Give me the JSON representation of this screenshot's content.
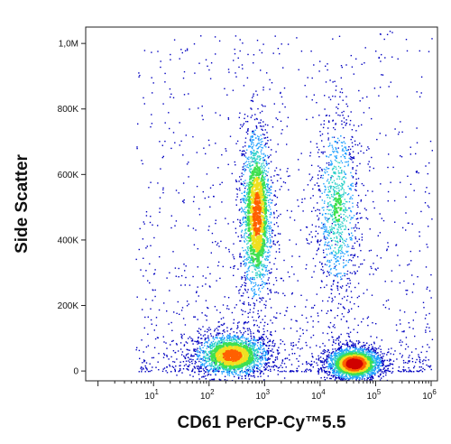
{
  "chart_data": {
    "type": "scatter",
    "subtype": "density-dot-plot",
    "title": "",
    "xlabel": "CD61 PerCP-Cy™5.5",
    "ylabel": "Side Scatter",
    "x_scale": "log",
    "xlim": [
      0.6,
      1300000
    ],
    "ylim": [
      -30000,
      1050000
    ],
    "x_ticks": [
      {
        "value": 10,
        "base": "10",
        "exp": "1"
      },
      {
        "value": 100,
        "base": "10",
        "exp": "2"
      },
      {
        "value": 1000,
        "base": "10",
        "exp": "3"
      },
      {
        "value": 10000,
        "base": "10",
        "exp": "4"
      },
      {
        "value": 100000,
        "base": "10",
        "exp": "5"
      },
      {
        "value": 1000000,
        "base": "10",
        "exp": "6"
      }
    ],
    "y_ticks": [
      {
        "value": 0,
        "label": "0"
      },
      {
        "value": 200000,
        "label": "200K"
      },
      {
        "value": 400000,
        "label": "400K"
      },
      {
        "value": 600000,
        "label": "600K"
      },
      {
        "value": 800000,
        "label": "800K"
      },
      {
        "value": 1000000,
        "label": "1,0M"
      }
    ],
    "populations": [
      {
        "x_center": 250,
        "y_center": 50000,
        "x_spread_decades": 0.35,
        "y_sd": 35000,
        "density": "high"
      },
      {
        "x_center": 700,
        "y_center": 480000,
        "x_spread_decades": 0.15,
        "y_sd": 140000,
        "density": "high"
      },
      {
        "x_center": 40000,
        "y_center": 25000,
        "x_spread_decades": 0.25,
        "y_sd": 25000,
        "density": "very high"
      },
      {
        "x_center": 20000,
        "y_center": 500000,
        "x_spread_decades": 0.2,
        "y_sd": 150000,
        "density": "medium"
      }
    ],
    "grid": false,
    "legend": "none",
    "colormap": [
      "#0000c0",
      "#1fa0ff",
      "#2ad0c8",
      "#40e050",
      "#f0e020",
      "#ff6000",
      "#d00000"
    ]
  }
}
